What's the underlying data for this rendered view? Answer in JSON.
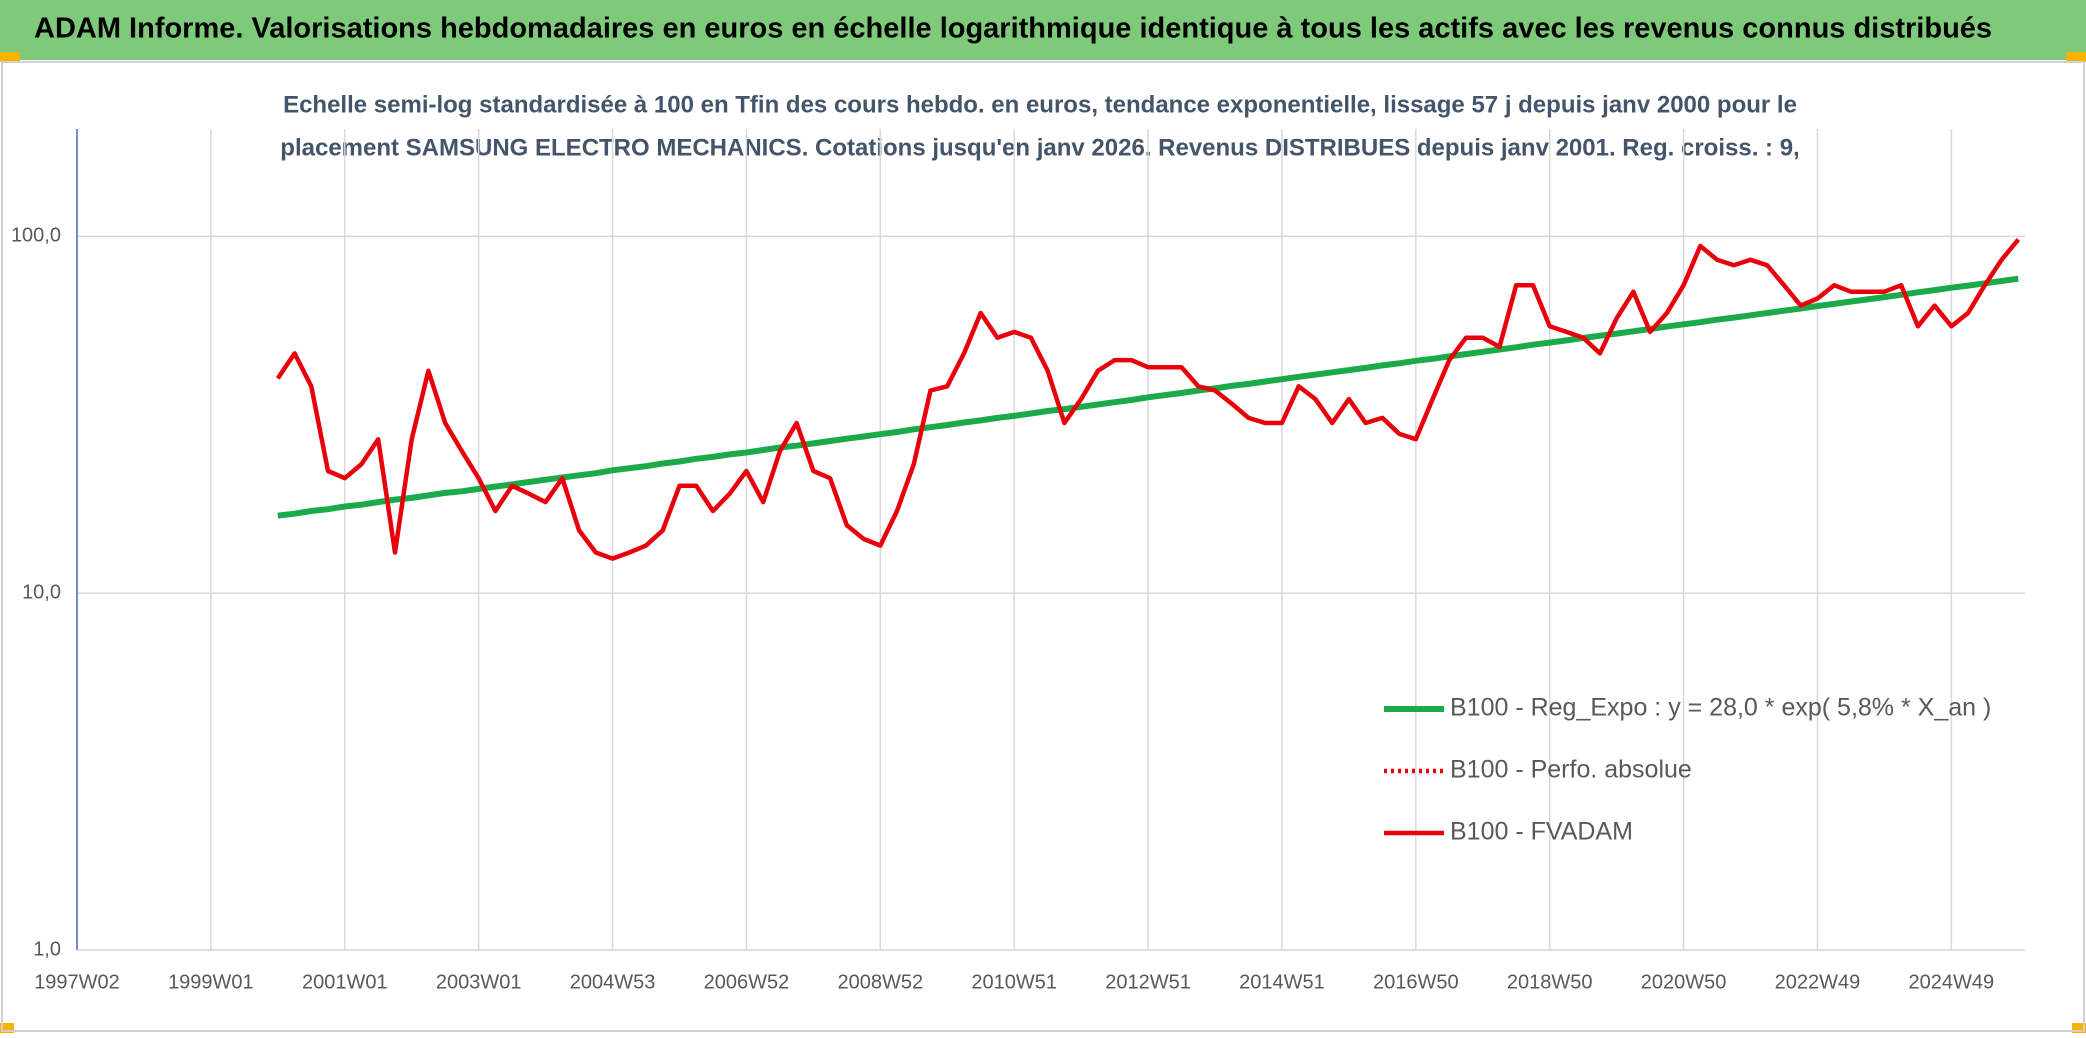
{
  "chart_data": {
    "type": "line",
    "title": "ADAM Informe. Valorisations hebdomadaires en euros en échelle logarithmique identique à tous les actifs avec les revenus connus distribués",
    "subtitle": [
      "Echelle semi-log standardisée à 100 en Tfin des cours hebdo. en euros, tendance exponentielle, lissage 57 j depuis janv 2000 pour le",
      "placement SAMSUNG ELECTRO MECHANICS. Cotations jusqu'en janv 2026. Revenus DISTRIBUES depuis janv 2001. Reg. croiss. : 9,"
    ],
    "log_scale": true,
    "grid": true,
    "legend": "right",
    "ylim": [
      1,
      200
    ],
    "yticks": [
      {
        "value": 1,
        "label": "1,0"
      },
      {
        "value": 10,
        "label": "10,0"
      },
      {
        "value": 100,
        "label": "100,0"
      }
    ],
    "categories": [
      "1997W02",
      null,
      null,
      null,
      null,
      null,
      null,
      null,
      "1999W01",
      null,
      null,
      null,
      null,
      null,
      null,
      null,
      "2001W01",
      null,
      null,
      null,
      null,
      null,
      null,
      null,
      "2003W01",
      null,
      null,
      null,
      null,
      null,
      null,
      null,
      "2004W53",
      null,
      null,
      null,
      null,
      null,
      null,
      null,
      "2006W52",
      null,
      null,
      null,
      null,
      null,
      null,
      null,
      "2008W52",
      null,
      null,
      null,
      null,
      null,
      null,
      null,
      "2010W51",
      null,
      null,
      null,
      null,
      null,
      null,
      null,
      "2012W51",
      null,
      null,
      null,
      null,
      null,
      null,
      null,
      "2014W51",
      null,
      null,
      null,
      null,
      null,
      null,
      null,
      "2016W50",
      null,
      null,
      null,
      null,
      null,
      null,
      null,
      "2018W50",
      null,
      null,
      null,
      null,
      null,
      null,
      null,
      "2020W50",
      null,
      null,
      null,
      null,
      null,
      null,
      null,
      "2022W49",
      null,
      null,
      null,
      null,
      null,
      null,
      null,
      "2024W49",
      null,
      null,
      null,
      null
    ],
    "series": [
      {
        "name": "B100 - Reg_Expo : y = 28,0 * exp( 5,8% *  X_an )",
        "color": "#1aaa4a",
        "style": "solid",
        "values": [
          null,
          null,
          null,
          null,
          null,
          null,
          null,
          null,
          null,
          null,
          null,
          null,
          16.5,
          16.7,
          17.0,
          17.2,
          17.5,
          17.7,
          18.0,
          18.3,
          18.5,
          18.8,
          19.1,
          19.3,
          19.6,
          19.9,
          20.2,
          20.5,
          20.8,
          21.1,
          21.4,
          21.7,
          22.1,
          22.4,
          22.7,
          23.1,
          23.4,
          23.8,
          24.1,
          24.5,
          24.8,
          25.2,
          25.6,
          25.9,
          26.3,
          26.7,
          27.1,
          27.5,
          27.9,
          28.3,
          28.8,
          29.2,
          29.6,
          30.1,
          30.5,
          31.0,
          31.4,
          31.9,
          32.4,
          32.8,
          33.3,
          33.8,
          34.3,
          34.8,
          35.4,
          35.9,
          36.4,
          37.0,
          37.5,
          38.1,
          38.6,
          39.2,
          39.8,
          40.4,
          41.0,
          41.6,
          42.2,
          42.8,
          43.5,
          44.1,
          44.8,
          45.4,
          46.1,
          46.8,
          47.5,
          48.2,
          48.9,
          49.7,
          50.4,
          51.1,
          51.9,
          52.7,
          53.4,
          54.2,
          55.0,
          55.9,
          56.7,
          57.5,
          58.4,
          59.2,
          60.1,
          61.0,
          61.9,
          62.8,
          63.8,
          64.7,
          65.7,
          66.6,
          67.6,
          68.6,
          69.7,
          70.7,
          71.8,
          72.8,
          73.9,
          75.0,
          76.1
        ]
      },
      {
        "name": "B100 - Perfo. absolue",
        "color": "#e8000b",
        "style": "dotted",
        "values": [
          null,
          null,
          null,
          null,
          null,
          null,
          null,
          null,
          null,
          null,
          null,
          null,
          null,
          null,
          null,
          null,
          null,
          null,
          null,
          null,
          null,
          null,
          null,
          null,
          null,
          null,
          null,
          null,
          null,
          null,
          null,
          null,
          null,
          null,
          null,
          null,
          null,
          null,
          null,
          null,
          null,
          null,
          null,
          null,
          null,
          null,
          null,
          null,
          null,
          null,
          null,
          null,
          null,
          null,
          null,
          null,
          null,
          null,
          null,
          null,
          null,
          null,
          null,
          null,
          null,
          null,
          null,
          null,
          null,
          null,
          null,
          null,
          null,
          null,
          null,
          null,
          null,
          null,
          null,
          null,
          null,
          null,
          null,
          null,
          null,
          null,
          null,
          null,
          null,
          null,
          null,
          null,
          null,
          null,
          null,
          null,
          null,
          null,
          null,
          null,
          null,
          null,
          null,
          null,
          null,
          null,
          null,
          null,
          null,
          null,
          null,
          null,
          null,
          null,
          null,
          null,
          null
        ]
      },
      {
        "name": "B100 - FVADAM",
        "color": "#e8000b",
        "style": "solid",
        "values": [
          null,
          null,
          null,
          null,
          null,
          null,
          null,
          null,
          null,
          null,
          null,
          null,
          40,
          47,
          38,
          22,
          21,
          23,
          27,
          13,
          27,
          42,
          30,
          25,
          21,
          17,
          20,
          19,
          18,
          21,
          15,
          13,
          12.5,
          13,
          13.6,
          15,
          20,
          20,
          17,
          19,
          22,
          18,
          25,
          30,
          22,
          21,
          15.5,
          14.2,
          13.6,
          17,
          23,
          37,
          38,
          47,
          61,
          52,
          54,
          52,
          42,
          30,
          35,
          42,
          45,
          45,
          43,
          43,
          43,
          38,
          37,
          34,
          31,
          30,
          30,
          38,
          35,
          30,
          35,
          30,
          31,
          28,
          27,
          35,
          45,
          52,
          52,
          49,
          73,
          73,
          56,
          54,
          52,
          47,
          59,
          70,
          54,
          61,
          73,
          94,
          86,
          83,
          86,
          83,
          73,
          64,
          67,
          73,
          70,
          70,
          70,
          73,
          56,
          64,
          56,
          61,
          73,
          86,
          98
        ]
      }
    ]
  }
}
